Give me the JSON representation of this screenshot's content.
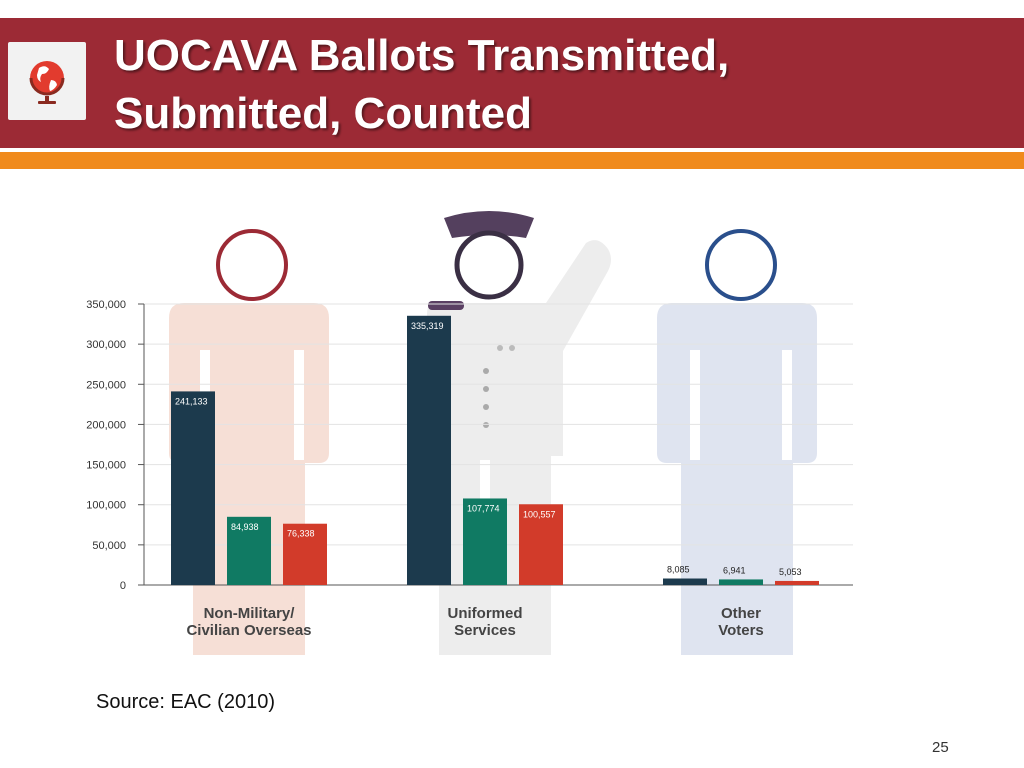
{
  "slide": {
    "title_line1": "UOCAVA Ballots Transmitted,",
    "title_line2": "Submitted, Counted",
    "source": "Source: EAC (2010)",
    "page_number": "25",
    "logo_icon": "globe-icon"
  },
  "colors": {
    "header": "#9c2a35",
    "accent_stripe": "#f08a1c",
    "series": [
      "#1c3a4d",
      "#107a63",
      "#d23b2a"
    ]
  },
  "chart_data": {
    "type": "bar",
    "categories": [
      [
        "Non-Military/",
        "Civilian Overseas"
      ],
      [
        "Uniformed",
        "Services"
      ],
      [
        "Other",
        "Voters"
      ]
    ],
    "series": [
      {
        "values": [
          241133,
          335319,
          8085
        ],
        "labels": [
          "241,133",
          "335,319",
          "8,085"
        ]
      },
      {
        "values": [
          84938,
          107774,
          6941
        ],
        "labels": [
          "84,938",
          "107,774",
          "6,941"
        ]
      },
      {
        "values": [
          76338,
          100557,
          5053
        ],
        "labels": [
          "76,338",
          "100,557",
          "5,053"
        ]
      }
    ],
    "ylim": [
      0,
      350000
    ],
    "yticks": [
      0,
      50000,
      100000,
      150000,
      200000,
      250000,
      300000,
      350000
    ],
    "ytick_labels": [
      "0",
      "50,000",
      "100,000",
      "150,000",
      "200,000",
      "250,000",
      "300,000",
      "350,000"
    ],
    "grid": true
  }
}
